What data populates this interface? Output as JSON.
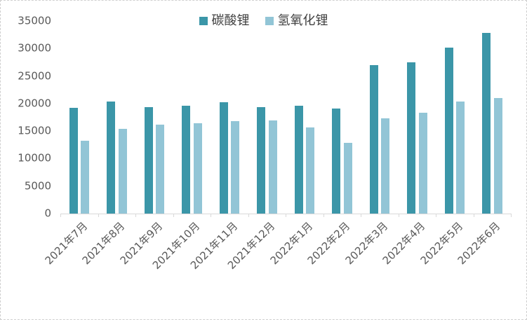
{
  "chart_data": {
    "type": "bar",
    "title": "",
    "xlabel": "",
    "ylabel": "",
    "categories": [
      "2021年7月",
      "2021年8月",
      "2021年9月",
      "2021年10月",
      "2021年11月",
      "2021年12月",
      "2022年1月",
      "2022年2月",
      "2022年3月",
      "2022年4月",
      "2022年5月",
      "2022年6月"
    ],
    "series": [
      {
        "name": "碳酸锂",
        "color": "#3B96A8",
        "values": [
          19200,
          20400,
          19400,
          19600,
          20200,
          19300,
          19600,
          19100,
          27000,
          27500,
          30200,
          32800
        ]
      },
      {
        "name": "氢氧化锂",
        "color": "#92C5D6",
        "values": [
          13300,
          15400,
          16200,
          16400,
          16800,
          16900,
          15700,
          12800,
          17300,
          18300,
          20400,
          21000
        ]
      }
    ],
    "ylim": [
      0,
      35000
    ],
    "yticks": [
      0,
      5000,
      10000,
      15000,
      20000,
      25000,
      30000,
      35000
    ],
    "legend_position": "top-center",
    "grid": false,
    "colors": {
      "axis_line": "#d9d9d9",
      "tick_label": "#595959",
      "legend_text": "#404040",
      "background": "#ffffff",
      "border": "#cfcfcf"
    }
  }
}
